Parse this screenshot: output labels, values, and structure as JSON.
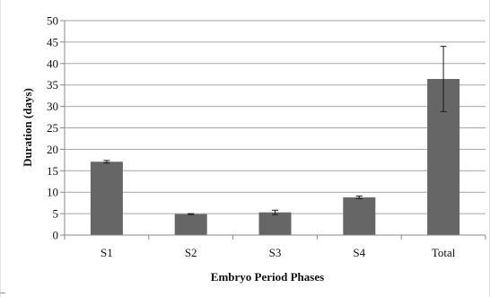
{
  "chart_data": {
    "type": "bar",
    "categories": [
      "S1",
      "S2",
      "S3",
      "S4",
      "Total"
    ],
    "values": [
      17.1,
      4.9,
      5.3,
      8.8,
      36.4
    ],
    "error_bars": [
      0.3,
      0.1,
      0.5,
      0.3,
      7.6
    ],
    "xlabel": "Embryo Period Phases",
    "ylabel": "Duration (days)",
    "ylim": [
      0,
      50
    ],
    "yticks": [
      0,
      5,
      10,
      15,
      20,
      25,
      30,
      35,
      40,
      45,
      50
    ],
    "ytick_labels": [
      "0",
      "5",
      "10",
      "15",
      "20",
      "25",
      "30",
      "35",
      "40",
      "45",
      "50"
    ],
    "grid": true,
    "bar_color": "#666666",
    "grid_color": "#a6a6a6"
  }
}
